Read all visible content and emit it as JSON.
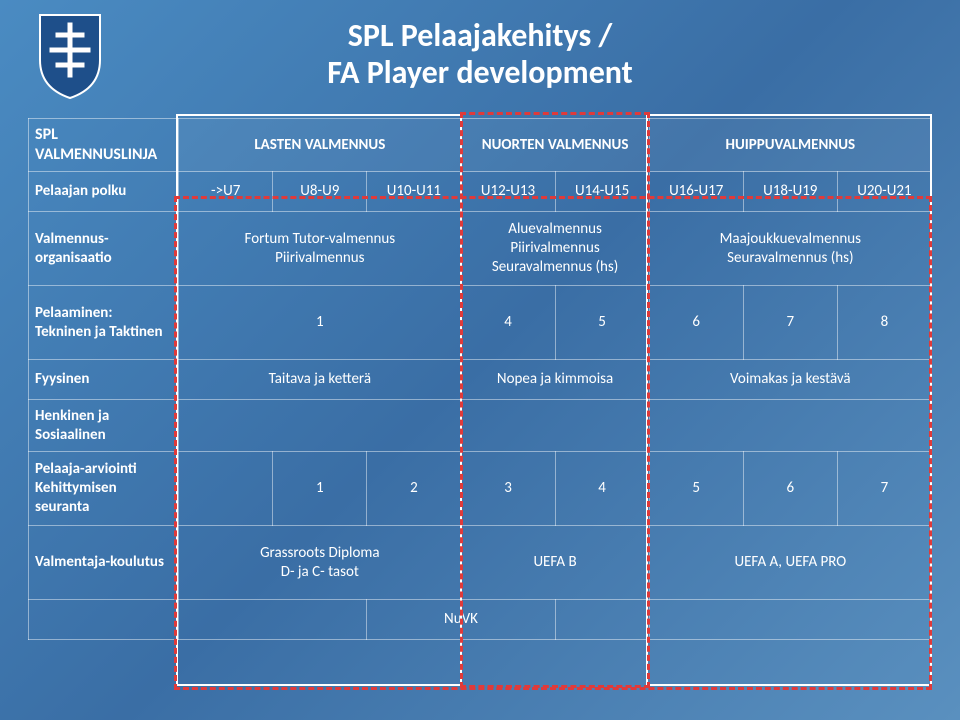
{
  "title_line1": "SPL Pelaajakehitys /",
  "title_line2": "FA Player development",
  "colors": {
    "red": "#e03a3a",
    "white": "#ffffff"
  },
  "header": {
    "rowlabel": "SPL VALMENNUSLINJA",
    "group1": "LASTEN VALMENNUS",
    "group2": "NUORTEN VALMENNUS",
    "group3": "HUIPPUVALMENNUS"
  },
  "rows": {
    "r1": {
      "label": "Pelaajan polku",
      "c1": "->U7",
      "c2": "U8-U9",
      "c3": "U10-U11",
      "c4": "U12-U13",
      "c5": "U14-U15",
      "c6": "U16-U17",
      "c7": "U18-U19",
      "c8": "U20-U21"
    },
    "r2": {
      "label": "Valmennus-organisaatio",
      "g1": "Fortum Tutor-valmennus\nPiirivalmennus",
      "g2": "Aluevalmennus\nPiirivalmennus\nSeuravalmennus (hs)",
      "g3": "Maajoukkuevalmennus\nSeuravalmennus (hs)"
    },
    "r3": {
      "label": "Pelaaminen:\nTekninen ja Taktinen",
      "g1": "1",
      "c4": "4",
      "c5": "5",
      "c6": "6",
      "c7": "7",
      "c8": "8"
    },
    "r4": {
      "label": "Fyysinen",
      "g1": "Taitava ja ketterä",
      "g2": "Nopea ja kimmoisa",
      "g3": "Voimakas ja kestävä"
    },
    "r5": {
      "label": "Henkinen ja Sosiaalinen"
    },
    "r6": {
      "label": "Pelaaja-arviointi\nKehittymisen seuranta",
      "c2": "1",
      "c3": "2",
      "c4": "3",
      "c5": "4",
      "c6": "5",
      "c7": "6",
      "c8": "7"
    },
    "r7": {
      "label": "Valmentaja-koulutus",
      "g1": "Grassroots Diploma\nD- ja C- tasot",
      "g2": "UEFA B",
      "g3": "UEFA A, UEFA PRO"
    },
    "r8": {
      "label": "",
      "g1a": "",
      "nuvk": "NuVK",
      "g2a": "",
      "g3": ""
    }
  }
}
